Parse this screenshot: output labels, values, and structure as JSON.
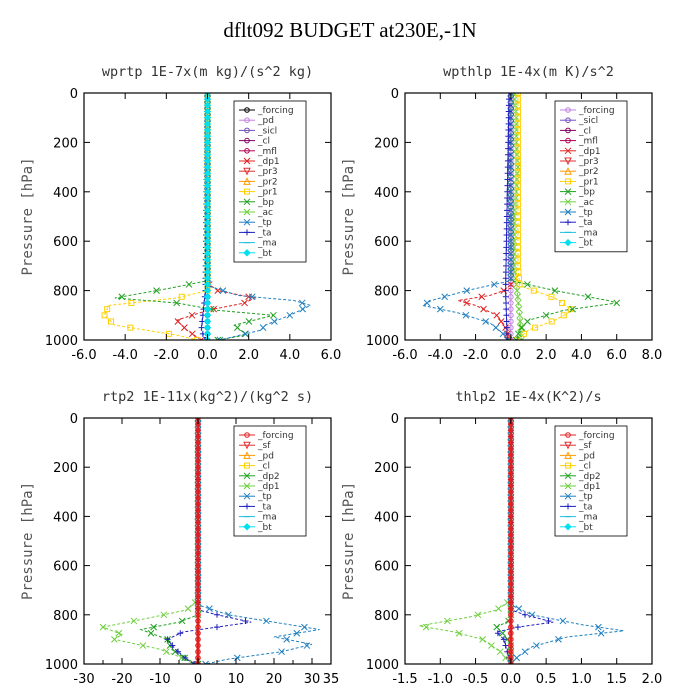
{
  "figure_title": "dflt092  BUDGET at230E,-1N",
  "chart_data": [
    {
      "type": "line",
      "title": "wprtp   1E-7x(m kg)/(s^2 kg)",
      "xlabel": "",
      "ylabel": "Pressure  [hPa]",
      "xlim": [
        -6,
        6
      ],
      "ylim": [
        1000,
        0
      ],
      "xticks": [
        -6,
        -4,
        -2,
        0,
        2,
        4,
        6
      ],
      "xtick_labels": [
        "-6.0",
        "-4.0",
        "-2.0",
        "0.0",
        "2.0",
        "4.0",
        "6.0"
      ],
      "yticks": [
        0,
        200,
        400,
        600,
        800,
        1000
      ],
      "ytick_labels": [
        "0",
        "200",
        "400",
        "600",
        "800",
        "1000"
      ],
      "legend": [
        "_forcing",
        "_pd",
        "_sicl",
        "_cl",
        "_mfl",
        "_dp1",
        "_pr3",
        "_pr2",
        "_pr1",
        "_bp",
        "_ac",
        "_tp",
        "_ta",
        "_ma",
        "_bt"
      ],
      "colors": [
        "#000000",
        "#c080e0",
        "#7050c0",
        "#800060",
        "#b00050",
        "#e02020",
        "#e03030",
        "#ff9900",
        "#ffd000",
        "#20a020",
        "#70d040",
        "#2080c0",
        "#2020c0",
        "#20c0e0",
        "#00e0f0"
      ],
      "markers": [
        "o",
        "o",
        "o",
        "o",
        "o",
        "x",
        "v",
        "^",
        "s",
        "x",
        "x",
        "x",
        "+",
        "-",
        "d"
      ],
      "series": [
        {
          "name": "_forcing",
          "points": [
            [
              0,
              0
            ],
            [
              0,
              200
            ],
            [
              0,
              400
            ],
            [
              0,
              600
            ],
            [
              0,
              800
            ],
            [
              0,
              900
            ],
            [
              0,
              1000
            ]
          ]
        },
        {
          "name": "_dp1",
          "points": [
            [
              0,
              0
            ],
            [
              0,
              740
            ],
            [
              0,
              770
            ],
            [
              0.5,
              800
            ],
            [
              2.3,
              830
            ],
            [
              1.8,
              850
            ],
            [
              0,
              880
            ],
            [
              -1.5,
              920
            ],
            [
              -1.0,
              960
            ],
            [
              -0.3,
              1000
            ]
          ]
        },
        {
          "name": "_pr1",
          "points": [
            [
              0,
              0
            ],
            [
              0,
              800
            ],
            [
              -1.5,
              830
            ],
            [
              -4.8,
              860
            ],
            [
              -5.0,
              900
            ],
            [
              -4.5,
              940
            ],
            [
              -1.5,
              980
            ],
            [
              -0.5,
              1000
            ]
          ]
        },
        {
          "name": "_bp",
          "points": [
            [
              0,
              0
            ],
            [
              0,
              760
            ],
            [
              -1.8,
              790
            ],
            [
              -4.5,
              830
            ],
            [
              -1.5,
              850
            ],
            [
              0.5,
              880
            ],
            [
              3.2,
              900
            ],
            [
              1.3,
              940
            ],
            [
              1.9,
              980
            ],
            [
              0.5,
              1000
            ]
          ]
        },
        {
          "name": "_tp",
          "points": [
            [
              0,
              0
            ],
            [
              0,
              780
            ],
            [
              1.5,
              820
            ],
            [
              4.2,
              840
            ],
            [
              5.0,
              860
            ],
            [
              4.0,
              900
            ],
            [
              2.8,
              940
            ],
            [
              2.6,
              960
            ],
            [
              0.6,
              1000
            ]
          ]
        },
        {
          "name": "_ta",
          "points": [
            [
              0,
              0
            ],
            [
              -0.1,
              800
            ],
            [
              -0.2,
              880
            ],
            [
              -0.3,
              960
            ],
            [
              -0.1,
              1000
            ]
          ]
        },
        {
          "name": "_bt",
          "points": [
            [
              0,
              0
            ],
            [
              0,
              1000
            ]
          ]
        }
      ]
    },
    {
      "type": "line",
      "title": "wpthlp   1E-4x(m K)/s^2",
      "xlabel": "",
      "ylabel": "Pressure  [hPa]",
      "xlim": [
        -6,
        8
      ],
      "ylim": [
        1000,
        0
      ],
      "xticks": [
        -6,
        -4,
        -2,
        0,
        2,
        4,
        6,
        8
      ],
      "xtick_labels": [
        "-6.0",
        "-4.0",
        "-2.0",
        "0.0",
        "2.0",
        "4.0",
        "6.0",
        "8.0"
      ],
      "yticks": [
        0,
        200,
        400,
        600,
        800,
        1000
      ],
      "ytick_labels": [
        "0",
        "200",
        "400",
        "600",
        "800",
        "1000"
      ],
      "legend": [
        "_forcing",
        "_sicl",
        "_cl",
        "_mfl",
        "_dp1",
        "_pr3",
        "_pr2",
        "_pr1",
        "_bp",
        "_ac",
        "_tp",
        "_ta",
        "_ma",
        "_bt"
      ],
      "colors": [
        "#c080e0",
        "#7050c0",
        "#800060",
        "#b00050",
        "#e02020",
        "#e03030",
        "#ff9900",
        "#ffd000",
        "#20a020",
        "#70d040",
        "#2080c0",
        "#2020c0",
        "#20c0e0",
        "#00e0f0"
      ],
      "markers": [
        "o",
        "o",
        "o",
        "o",
        "x",
        "v",
        "^",
        "s",
        "x",
        "x",
        "x",
        "+",
        "-",
        "d"
      ],
      "series": [
        {
          "name": "_forcing",
          "points": [
            [
              0,
              0
            ],
            [
              0,
              1000
            ]
          ]
        },
        {
          "name": "_ac",
          "points": [
            [
              0.2,
              0
            ],
            [
              0.3,
              100
            ],
            [
              0.3,
              200
            ],
            [
              0.4,
              300
            ],
            [
              0.2,
              500
            ],
            [
              0.2,
              700
            ],
            [
              0.5,
              900
            ],
            [
              0.6,
              1000
            ]
          ]
        },
        {
          "name": "_pr1",
          "points": [
            [
              0.4,
              0
            ],
            [
              0.4,
              700
            ],
            [
              0.5,
              780
            ],
            [
              2.5,
              830
            ],
            [
              3.5,
              880
            ],
            [
              2.5,
              920
            ],
            [
              1.0,
              960
            ],
            [
              0.3,
              1000
            ]
          ]
        },
        {
          "name": "_bp",
          "points": [
            [
              0,
              0
            ],
            [
              0,
              760
            ],
            [
              2.5,
              800
            ],
            [
              5.5,
              840
            ],
            [
              6.0,
              850
            ],
            [
              3.0,
              880
            ],
            [
              1.0,
              920
            ],
            [
              0.5,
              960
            ],
            [
              0.3,
              1000
            ]
          ]
        },
        {
          "name": "_dp1",
          "points": [
            [
              0,
              0
            ],
            [
              0,
              790
            ],
            [
              -1.2,
              820
            ],
            [
              -3.0,
              840
            ],
            [
              -2.0,
              860
            ],
            [
              -0.8,
              900
            ],
            [
              -0.3,
              950
            ],
            [
              -0.1,
              1000
            ]
          ]
        },
        {
          "name": "_tp",
          "points": [
            [
              0,
              0
            ],
            [
              0,
              760
            ],
            [
              -2.5,
              800
            ],
            [
              -4.5,
              840
            ],
            [
              -5.0,
              860
            ],
            [
              -3.0,
              890
            ],
            [
              -1.2,
              930
            ],
            [
              -0.5,
              970
            ],
            [
              -0.2,
              1000
            ]
          ]
        },
        {
          "name": "_ta",
          "points": [
            [
              -0.1,
              0
            ],
            [
              -0.2,
              400
            ],
            [
              -0.3,
              800
            ],
            [
              -0.2,
              1000
            ]
          ]
        }
      ]
    },
    {
      "type": "line",
      "title": "rtp2   1E-11x(kg^2)/(kg^2 s)",
      "xlabel": "",
      "ylabel": "Pressure  [hPa]",
      "xlim": [
        -30,
        35
      ],
      "ylim": [
        1000,
        0
      ],
      "xticks": [
        -30,
        -20,
        -10,
        0,
        10,
        20,
        30
      ],
      "xtick_labels": [
        "-30",
        "-20",
        "-10",
        "0",
        "10",
        "20",
        "30"
      ],
      "extra_xticks": [
        -25,
        -5,
        5,
        15,
        25,
        35
      ],
      "extra_xtick_labels": [
        "",
        "",
        "",
        "",
        "",
        "35"
      ],
      "yticks": [
        0,
        200,
        400,
        600,
        800,
        1000
      ],
      "ytick_labels": [
        "0",
        "200",
        "400",
        "600",
        "800",
        "1000"
      ],
      "legend": [
        "_forcing",
        "_sf",
        "_pd",
        "_cl",
        "_dp2",
        "_dp1",
        "_tp",
        "_ta",
        "_ma",
        "_bt"
      ],
      "colors": [
        "#e02020",
        "#e03030",
        "#ff9900",
        "#ffd000",
        "#20a020",
        "#70d040",
        "#2080c0",
        "#2020c0",
        "#20c0e0",
        "#00e0f0"
      ],
      "markers": [
        "o",
        "v",
        "^",
        "s",
        "x",
        "x",
        "x",
        "+",
        "-",
        "d"
      ],
      "series": [
        {
          "name": "_dp1",
          "points": [
            [
              0,
              0
            ],
            [
              0,
              740
            ],
            [
              -3,
              780
            ],
            [
              -12,
              810
            ],
            [
              -25,
              850
            ],
            [
              -20,
              880
            ],
            [
              -22,
              900
            ],
            [
              -10,
              940
            ],
            [
              -5,
              970
            ],
            [
              -1,
              1000
            ]
          ]
        },
        {
          "name": "_dp2",
          "points": [
            [
              0,
              0
            ],
            [
              0,
              800
            ],
            [
              -5,
              830
            ],
            [
              -15,
              860
            ],
            [
              -8,
              900
            ],
            [
              -7,
              940
            ],
            [
              -3,
              980
            ],
            [
              0,
              1000
            ]
          ]
        },
        {
          "name": "_tp",
          "points": [
            [
              0,
              0
            ],
            [
              0,
              760
            ],
            [
              8,
              800
            ],
            [
              20,
              830
            ],
            [
              32,
              860
            ],
            [
              20,
              890
            ],
            [
              30,
              920
            ],
            [
              22,
              950
            ],
            [
              8,
              980
            ],
            [
              2,
              1000
            ]
          ]
        },
        {
          "name": "_ta",
          "points": [
            [
              0,
              0
            ],
            [
              0,
              780
            ],
            [
              5,
              800
            ],
            [
              14,
              830
            ],
            [
              5,
              850
            ],
            [
              -4,
              870
            ],
            [
              -8,
              900
            ],
            [
              -6,
              940
            ],
            [
              -3,
              980
            ],
            [
              -1,
              1000
            ]
          ]
        },
        {
          "name": "_forcing",
          "points": [
            [
              0,
              0
            ],
            [
              0,
              1000
            ]
          ]
        }
      ]
    },
    {
      "type": "line",
      "title": "thlp2   1E-4x(K^2)/s",
      "xlabel": "",
      "ylabel": "Pressure  [hPa]",
      "xlim": [
        -1.5,
        2.0
      ],
      "ylim": [
        1000,
        0
      ],
      "xticks": [
        -1.5,
        -1.0,
        -0.5,
        0.0,
        0.5,
        1.0,
        1.5,
        2.0
      ],
      "xtick_labels": [
        "-1.5",
        "-1.0",
        "-0.5",
        "0.0",
        "0.5",
        "1.0",
        "1.5",
        "2.0"
      ],
      "yticks": [
        0,
        200,
        400,
        600,
        800,
        1000
      ],
      "ytick_labels": [
        "0",
        "200",
        "400",
        "600",
        "800",
        "1000"
      ],
      "legend": [
        "_forcing",
        "_sf",
        "_pd",
        "_cl",
        "_dp2",
        "_dp1",
        "_tp",
        "_ta",
        "_ma",
        "_bt"
      ],
      "colors": [
        "#e02020",
        "#e03030",
        "#ff9900",
        "#ffd000",
        "#20a020",
        "#70d040",
        "#2080c0",
        "#2020c0",
        "#20c0e0",
        "#00e0f0"
      ],
      "markers": [
        "o",
        "v",
        "^",
        "s",
        "x",
        "x",
        "x",
        "+",
        "-",
        "d"
      ],
      "series": [
        {
          "name": "_dp1",
          "points": [
            [
              0,
              0
            ],
            [
              0,
              740
            ],
            [
              -0.2,
              780
            ],
            [
              -0.6,
              810
            ],
            [
              -1.0,
              830
            ],
            [
              -1.3,
              845
            ],
            [
              -0.8,
              870
            ],
            [
              -0.4,
              900
            ],
            [
              -0.15,
              950
            ],
            [
              0,
              1000
            ]
          ]
        },
        {
          "name": "_dp2",
          "points": [
            [
              0,
              0
            ],
            [
              0,
              820
            ],
            [
              -0.2,
              850
            ],
            [
              -0.1,
              880
            ],
            [
              0,
              920
            ],
            [
              0,
              1000
            ]
          ]
        },
        {
          "name": "_tp",
          "points": [
            [
              0,
              0
            ],
            [
              0,
              760
            ],
            [
              0.3,
              800
            ],
            [
              1.0,
              840
            ],
            [
              1.6,
              865
            ],
            [
              0.8,
              890
            ],
            [
              0.3,
              930
            ],
            [
              0.1,
              970
            ],
            [
              0,
              1000
            ]
          ]
        },
        {
          "name": "_ta",
          "points": [
            [
              0,
              0
            ],
            [
              0,
              780
            ],
            [
              0.2,
              800
            ],
            [
              0.6,
              830
            ],
            [
              0.1,
              850
            ],
            [
              -0.2,
              870
            ],
            [
              -0.1,
              900
            ],
            [
              0,
              1000
            ]
          ]
        },
        {
          "name": "_forcing",
          "points": [
            [
              0,
              0
            ],
            [
              0,
              1000
            ]
          ]
        }
      ]
    }
  ]
}
